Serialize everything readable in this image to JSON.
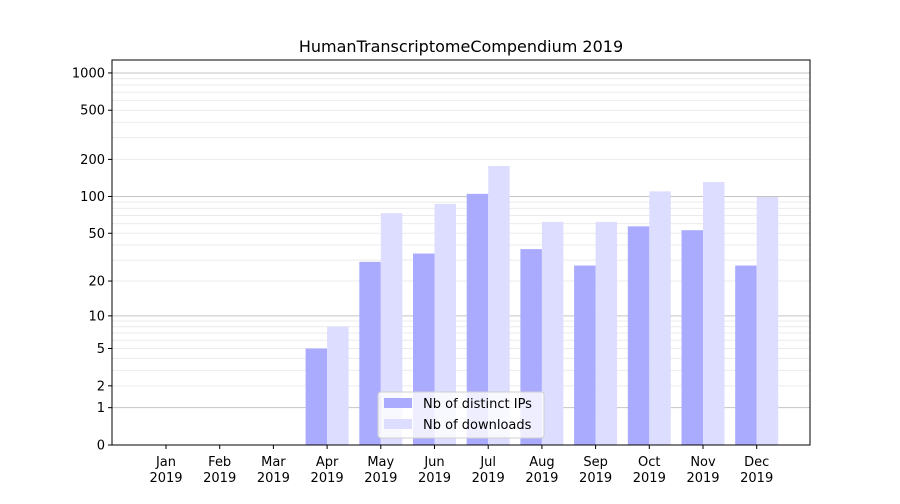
{
  "chart_data": {
    "type": "bar",
    "title": "HumanTranscriptomeCompendium 2019",
    "xlabel": "",
    "ylabel": "",
    "y_scale": "log(1+y)",
    "ylim": [
      0,
      1200
    ],
    "y_ticks": [
      0,
      1,
      2,
      5,
      10,
      20,
      50,
      100,
      200,
      500,
      1000
    ],
    "grid": true,
    "legend_position": "lower center",
    "categories": [
      "Jan\n2019",
      "Feb\n2019",
      "Mar\n2019",
      "Apr\n2019",
      "May\n2019",
      "Jun\n2019",
      "Jul\n2019",
      "Aug\n2019",
      "Sep\n2019",
      "Oct\n2019",
      "Nov\n2019",
      "Dec\n2019"
    ],
    "series": [
      {
        "name": "Nb of distinct IPs",
        "color": "#aaaaff",
        "values": [
          0,
          0,
          0,
          5,
          29,
          34,
          105,
          37,
          27,
          57,
          53,
          27
        ]
      },
      {
        "name": "Nb of downloads",
        "color": "#ddddff",
        "values": [
          0,
          0,
          0,
          8,
          73,
          87,
          177,
          62,
          62,
          110,
          131,
          99
        ]
      }
    ]
  }
}
